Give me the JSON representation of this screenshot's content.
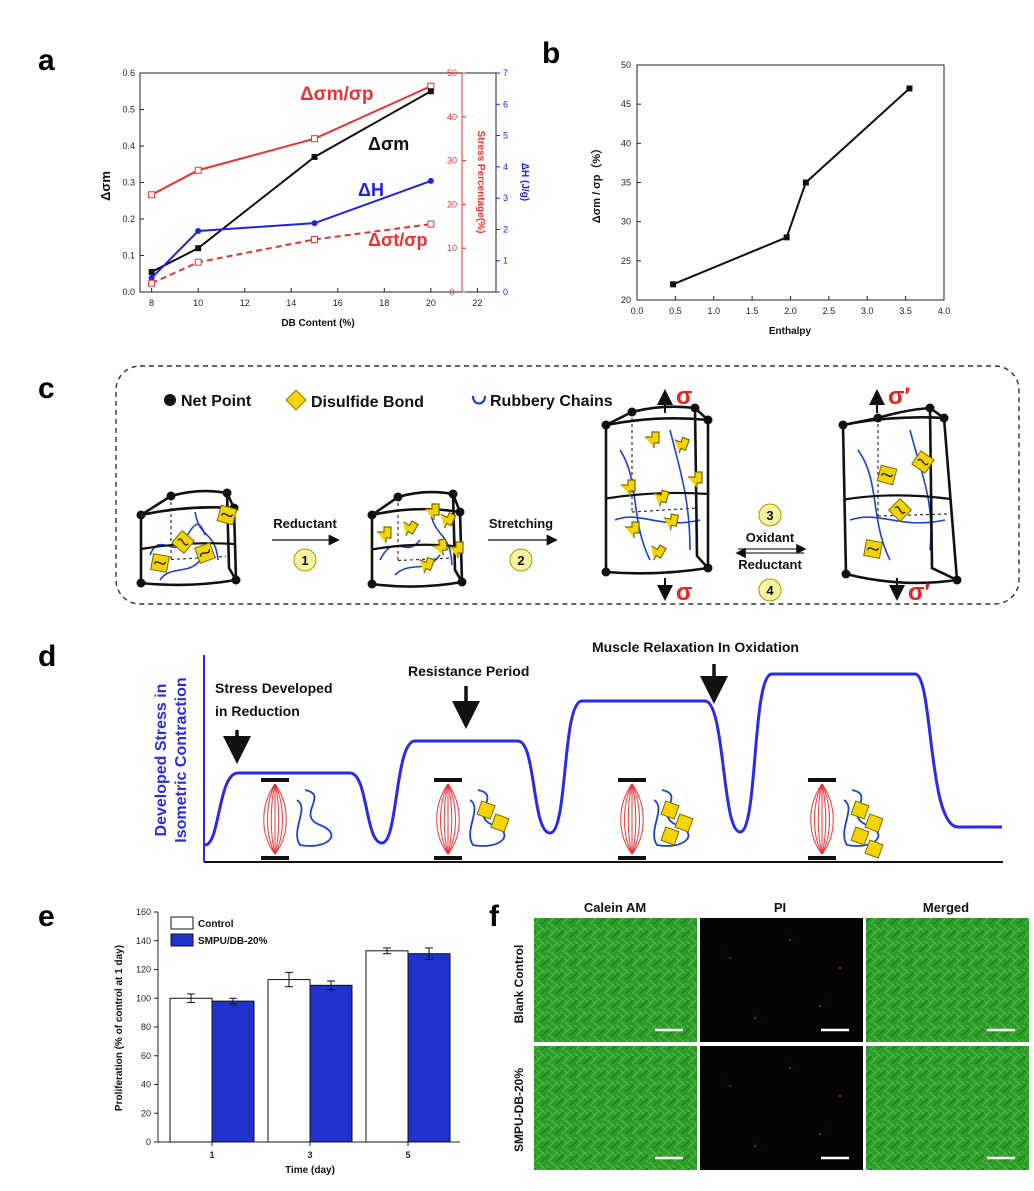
{
  "panel_labels": {
    "a": "a",
    "b": "b",
    "c": "c",
    "d": "d",
    "e": "e",
    "f": "f"
  },
  "colors": {
    "red": "#f03030",
    "blue": "#2020ee",
    "black": "#111111",
    "bar_blue": "#1f33cc",
    "curve_blue": "#2a2aee",
    "fluor_green": "#2e9a2a"
  },
  "chart_data": [
    {
      "id": "a",
      "type": "line",
      "xlabel": "DB Content (%)",
      "ylabel": "Δσm",
      "ylabel_right1": "Stress Percentage(%)",
      "ylabel_right2": "ΔH (J/g)",
      "xlim": [
        7.5,
        22.8
      ],
      "xticks": [
        8,
        10,
        12,
        14,
        16,
        18,
        20,
        22
      ],
      "ylim": [
        0,
        0.6
      ],
      "yticks": [
        0.0,
        0.1,
        0.2,
        0.3,
        0.4,
        0.5,
        0.6
      ],
      "right1_ticks": [
        0,
        10,
        20,
        30,
        40,
        50
      ],
      "right2_ticks": [
        0,
        1,
        2,
        3,
        4,
        5,
        6,
        7
      ],
      "series": [
        {
          "name": "Δσm/σp",
          "axis": "stress",
          "x": [
            8,
            10,
            15,
            20
          ],
          "values": [
            22.2,
            27.8,
            35,
            47
          ]
        },
        {
          "name": "Δσm",
          "axis": "left",
          "x": [
            8,
            10,
            15,
            20
          ],
          "values": [
            0.055,
            0.12,
            0.37,
            0.55
          ]
        },
        {
          "name": "ΔH",
          "axis": "dh",
          "x": [
            8,
            10,
            15,
            20
          ],
          "values": [
            0.45,
            1.95,
            2.2,
            3.55
          ]
        },
        {
          "name": "Δσt/σp",
          "axis": "stress",
          "x": [
            8,
            10,
            15,
            20
          ],
          "values": [
            2,
            6.8,
            12,
            15.5
          ]
        }
      ]
    },
    {
      "id": "b",
      "type": "line",
      "xlabel": "Enthalpy",
      "ylabel": "Δσm / σp（%）",
      "xlim": [
        0,
        4
      ],
      "xticks": [
        0.0,
        0.5,
        1.0,
        1.5,
        2.0,
        2.5,
        3.0,
        3.5,
        4.0
      ],
      "ylim": [
        20,
        50
      ],
      "yticks": [
        20,
        25,
        30,
        35,
        40,
        45,
        50
      ],
      "series": [
        {
          "x": [
            0.47,
            1.95,
            2.2,
            3.55
          ],
          "values": [
            22,
            28,
            35,
            47
          ]
        }
      ]
    },
    {
      "id": "e",
      "type": "bar",
      "xlabel": "Time (day)",
      "ylabel": "Proliferation (% of control at 1 day)",
      "categories": [
        "1",
        "3",
        "5"
      ],
      "ylim": [
        0,
        160
      ],
      "yticks": [
        0,
        20,
        40,
        60,
        80,
        100,
        120,
        140,
        160
      ],
      "series": [
        {
          "name": "Control",
          "values": [
            100,
            113,
            133
          ],
          "errors": [
            3,
            5,
            2
          ]
        },
        {
          "name": "SMPU/DB-20%",
          "values": [
            98,
            109,
            131
          ],
          "errors": [
            2,
            3,
            4
          ]
        }
      ]
    }
  ],
  "panel_c": {
    "legend": [
      "Net Point",
      "Disulfide Bond",
      "Rubbery Chains"
    ],
    "step1": {
      "label": "Reductant",
      "num": "1"
    },
    "step2": {
      "label": "Stretching",
      "num": "2"
    },
    "step3": {
      "label": "Oxidant",
      "num": "3"
    },
    "step4": {
      "label": "Reductant",
      "num": "4"
    },
    "sigma": "σ",
    "sigma_prime": "σ′"
  },
  "panel_d": {
    "ylabel_line1": "Developed Stress in",
    "ylabel_line2": "Isometric Contraction",
    "note1_line1": "Stress Developed",
    "note1_line2": "in Reduction",
    "note2": "Resistance Period",
    "note3": "Muscle Relaxation In Oxidation"
  },
  "panel_f": {
    "cols": [
      "Calein AM",
      "PI",
      "Merged"
    ],
    "rows": [
      "Blank Control",
      "SMPU-DB-20%"
    ]
  }
}
